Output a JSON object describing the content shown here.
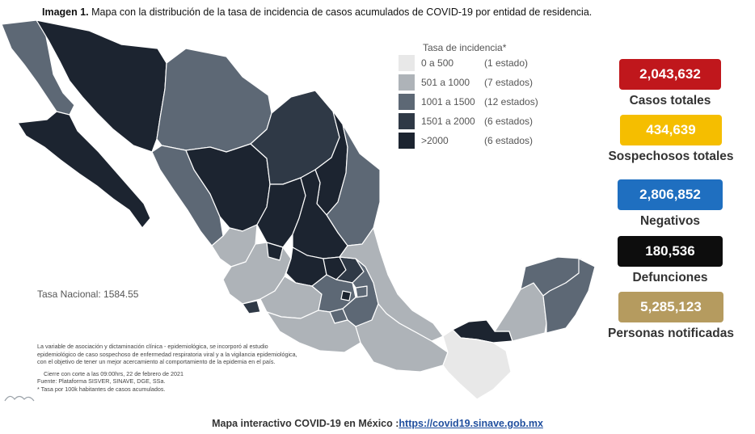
{
  "caption": {
    "prefix": "Imagen 1.",
    "text": " Mapa con la distribución de la tasa de incidencia de casos acumulados de COVID-19 por entidad de residencia."
  },
  "legend": {
    "title": "Tasa de incidencia*",
    "items": [
      {
        "range": "0 a   500",
        "count": "(1 estado)",
        "color": "#e8e8e8"
      },
      {
        "range": "501 a  1000",
        "count": "(7 estados)",
        "color": "#aeb3b8"
      },
      {
        "range": "1001 a  1500",
        "count": "(12 estados)",
        "color": "#5d6875"
      },
      {
        "range": "1501 a  2000",
        "count": "(6 estados)",
        "color": "#2f3946"
      },
      {
        "range": ">2000",
        "count": "(6 estados)",
        "color": "#1c2430"
      }
    ]
  },
  "tasa_nacional": "Tasa Nacional: 1584.55",
  "notes": {
    "line1": "La variable de asociación y dictaminación clínica - epidemiológica, se incorporó al estudio",
    "line2": "epidemiológico de caso sospechoso de enfermedad respiratoria viral y a la vigilancia epidemiológica,",
    "line3": "con el objetivo de tener un mejor acercamiento al comportamiento de la epidemia en el país.",
    "line4": "Cierre con corte a las 09:00hrs, 22 de febrero de 2021",
    "line5": "Fuente: Plataforma SISVER, SINAVE, DGE, SSa.",
    "line6": "* Tasa por 100k habitantes de casos acumulados."
  },
  "stats": [
    {
      "value": "2,043,632",
      "label": "Casos totales",
      "color": "#c0171c"
    },
    {
      "value": "434,639",
      "label": "Sospechosos totales",
      "color": "#f5be00"
    },
    {
      "value": "2,806,852",
      "label": "Negativos",
      "color": "#1f6fc0"
    },
    {
      "value": "180,536",
      "label": "Defunciones",
      "color": "#0d0d0d"
    },
    {
      "value": "5,285,123",
      "label": "Personas notificadas",
      "color": "#b59b5f"
    }
  ],
  "footer": {
    "text": "Mapa interactivo COVID-19 en México :",
    "link": "https://covid19.sinave.gob.mx"
  },
  "map_colors": {
    "lightest": "#e8e8e8",
    "light": "#aeb3b8",
    "mid": "#5d6875",
    "dark": "#2f3946",
    "darkest": "#1c2430",
    "border": "#ffffff"
  }
}
